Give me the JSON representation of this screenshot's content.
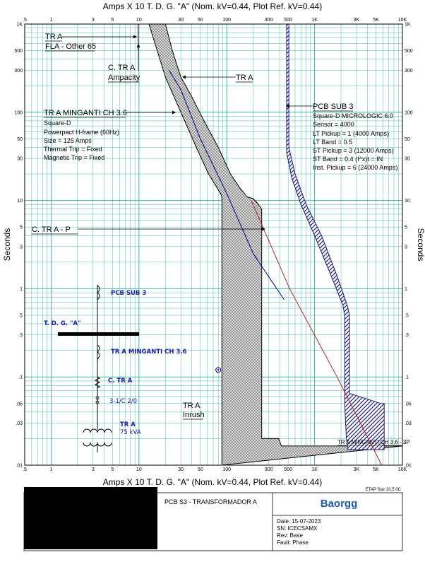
{
  "chart_data": {
    "type": "line",
    "title": "Amps  X  10   T. D. G. \"A\" (Nom. kV=0.44, Plot Ref. kV=0.44)",
    "xlabel": "Amps  X  10   T. D. G. \"A\" (Nom. kV=0.44, Plot Ref. kV=0.44)",
    "ylabel": "Seconds",
    "xscale": "log",
    "yscale": "log",
    "xlim": [
      0.5,
      10000
    ],
    "ylim": [
      0.01,
      1000
    ],
    "grid": true,
    "x_ticks": [
      {
        "v": 0.5,
        "t": ".5"
      },
      {
        "v": 1,
        "t": "1"
      },
      {
        "v": 3,
        "t": "3"
      },
      {
        "v": 5,
        "t": "5"
      },
      {
        "v": 10,
        "t": "10"
      },
      {
        "v": 30,
        "t": "30"
      },
      {
        "v": 50,
        "t": "50"
      },
      {
        "v": 100,
        "t": "100"
      },
      {
        "v": 300,
        "t": "300"
      },
      {
        "v": 500,
        "t": "500"
      },
      {
        "v": 1000,
        "t": "1K"
      },
      {
        "v": 3000,
        "t": "3K"
      },
      {
        "v": 5000,
        "t": "5K"
      },
      {
        "v": 10000,
        "t": "10K"
      }
    ],
    "y_ticks": [
      {
        "v": 1000,
        "t": "1K"
      },
      {
        "v": 500,
        "t": "500"
      },
      {
        "v": 300,
        "t": "300"
      },
      {
        "v": 100,
        "t": "100"
      },
      {
        "v": 50,
        "t": "50"
      },
      {
        "v": 30,
        "t": "30"
      },
      {
        "v": 10,
        "t": "10"
      },
      {
        "v": 5,
        "t": "5"
      },
      {
        "v": 3,
        "t": "3"
      },
      {
        "v": 1,
        "t": "1"
      },
      {
        "v": 0.5,
        "t": ".5"
      },
      {
        "v": 0.3,
        "t": ".3"
      },
      {
        "v": 0.1,
        "t": ".1"
      },
      {
        "v": 0.05,
        "t": ".05"
      },
      {
        "v": 0.03,
        "t": ".03"
      },
      {
        "v": 0.01,
        "t": ".01"
      }
    ],
    "series": [
      {
        "name": "TR A MINGANTI CH 3.6",
        "kind": "band",
        "fill": "dots",
        "color": "#000000",
        "upper": [
          [
            20,
            1000
          ],
          [
            24,
            500
          ],
          [
            30,
            250
          ],
          [
            40,
            150
          ],
          [
            55,
            80
          ],
          [
            80,
            40
          ],
          [
            110,
            20
          ],
          [
            140,
            14
          ],
          [
            170,
            11
          ],
          [
            200,
            10.5
          ],
          [
            220,
            9.5
          ],
          [
            250,
            8
          ],
          [
            250,
            0.02
          ],
          [
            390,
            0.02
          ],
          [
            420,
            0.0165
          ],
          [
            10000,
            0.0165
          ]
        ],
        "lower": [
          [
            13,
            1000
          ],
          [
            20,
            250
          ],
          [
            30,
            100
          ],
          [
            45,
            40
          ],
          [
            62,
            20
          ],
          [
            85,
            12
          ],
          [
            88,
            11
          ],
          [
            88,
            0.01
          ]
        ]
      },
      {
        "name": "PCB SUB 3",
        "kind": "band",
        "fill": "hatch",
        "color": "#1a1a7a",
        "upper": [
          [
            510,
            1000
          ],
          [
            510,
            40
          ],
          [
            600,
            20
          ],
          [
            800,
            9
          ],
          [
            1200,
            4
          ],
          [
            1800,
            1.4
          ],
          [
            2350,
            0.65
          ],
          [
            2500,
            0.5
          ],
          [
            2500,
            0.065
          ],
          [
            5700,
            0.05
          ],
          [
            6200,
            0.05
          ],
          [
            6200,
            0.015
          ]
        ],
        "lower": [
          [
            480,
            1000
          ],
          [
            480,
            35
          ],
          [
            550,
            18
          ],
          [
            700,
            9
          ],
          [
            1000,
            4
          ],
          [
            1500,
            1.5
          ],
          [
            2100,
            0.65
          ],
          [
            2200,
            0.5
          ],
          [
            2200,
            0.05
          ],
          [
            2300,
            0.02
          ],
          [
            2400,
            0.015
          ]
        ]
      },
      {
        "name": "TR A",
        "kind": "line",
        "color": "#00008b",
        "points": [
          [
            22,
            300
          ],
          [
            30,
            180
          ],
          [
            50,
            50
          ],
          [
            100,
            12
          ],
          [
            200,
            2.5
          ],
          [
            450,
            0.75
          ]
        ]
      },
      {
        "name": "C. TR A - P",
        "kind": "line",
        "color": "#a52a2a",
        "points": [
          [
            190,
            10
          ],
          [
            520,
            1
          ],
          [
            1800,
            0.1
          ],
          [
            5800,
            0.01
          ]
        ]
      },
      {
        "name": "TR A Ampacity",
        "kind": "line",
        "color": "#800000",
        "points": [
          [
            9.8,
            1000
          ],
          [
            9.8,
            500
          ]
        ]
      }
    ],
    "markers": [
      {
        "name": "TR A Inrush",
        "x": 80,
        "y": 0.12,
        "shape": "circle-dot",
        "color": "#00008b"
      }
    ]
  },
  "annotations": {
    "tr_a_fla": {
      "title": "TR A",
      "line2": "FLA - Other 65"
    },
    "tr_a_ampacity": {
      "title": "C. TR A",
      "line2": "Ampacity"
    },
    "tr_a_label": {
      "title": "TR A"
    },
    "minganti": {
      "title": "TR A MINGANTI CH 3.6",
      "lines": [
        "Square-D",
        "Powerpact H-frame (60Hz)",
        "Size = 125 Amps",
        "Thermal Trip = Fixed",
        "Magnetic Trip = Fixed"
      ]
    },
    "pcb_sub3": {
      "title": "PCB SUB 3",
      "lines": [
        "Square-D  MICROLOGIC 6.0",
        "Sensor = 4000",
        "LT Pickup = 1 (4000 Amps)",
        "LT Band = 0.5",
        "ST Pickup = 3 (12000 Amps)",
        "ST Band = 0.4  (I^x)t = IN",
        "Inst. Pickup = 6 (24000 Amps)"
      ]
    },
    "c_tr_a_p": {
      "title": "C. TR A - P"
    },
    "inrush": {
      "title": "TR A",
      "line2": "Inrush"
    },
    "minganti_bottom": {
      "title": "TR A MINGANTI CH 3.6 - 3P"
    }
  },
  "one_line": {
    "pcb_sub3": "PCB SUB 3",
    "bus": "T. D. G. \"A\"",
    "minganti": "TR A MINGANTI CH 3.6",
    "ctra": "C. TR A",
    "cable": "3-1/C 2/0",
    "tr": "TR A",
    "kva": "75 kVA",
    "color": "#1a1aa6"
  },
  "footer": {
    "etap_version": "ETAP Star 20.5.0C",
    "project": "PCB S3 - TRANSFORMADOR A",
    "logo": "Baorgg",
    "logo_color": "#1e5aa8",
    "date": "Date:  15-07-2023",
    "sn": "SN:    ICECSAMX",
    "rev": "Rev:   Base",
    "fault": "Fault:  Phase"
  },
  "colors": {
    "grid": "#3fb8a6",
    "axes": "#000000"
  }
}
